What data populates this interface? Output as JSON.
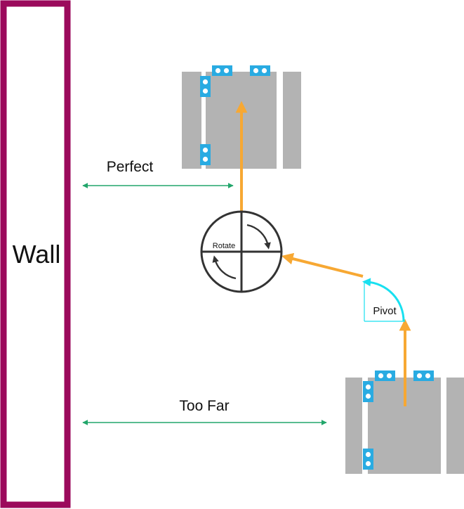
{
  "labels": {
    "wall": "Wall",
    "perfect": "Perfect",
    "too_far": "Too Far",
    "rotate": "Rotate",
    "pivot": "Pivot"
  },
  "colors": {
    "wall": "#9b0a5c",
    "robot_body": "#b3b3b3",
    "sensor": "#29abe2",
    "path_arrow": "#f7a833",
    "distance_arrow": "#22a66b",
    "pivot_arc": "#18e0f0",
    "rotate_circle": "#333333"
  }
}
